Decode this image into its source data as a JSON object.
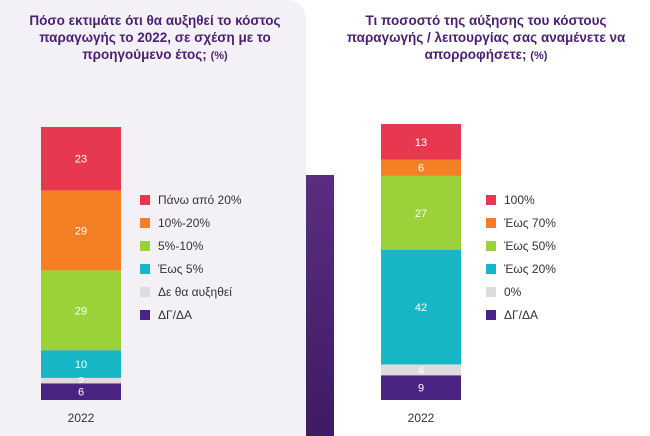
{
  "colors": [
    "#e8384f",
    "#f47f24",
    "#9bd23a",
    "#17b6c5",
    "#dcdcdc",
    "#4a2483"
  ],
  "charts": [
    {
      "title": "Πόσο εκτιμάτε ότι θα αυξηθεί το κόστος παραγωγής το 2022, σε σχέση με το προηγούμενο έτος;",
      "unit": "(%)",
      "year": "2022",
      "legend": [
        "Πάνω από 20%",
        "10%-20%",
        "5%-10%",
        "Έως 5%",
        "Δε θα αυξηθεί",
        "ΔΓ/ΔΑ"
      ]
    },
    {
      "title": "Τι ποσοστό της αύξησης του κόστους παραγωγής / λειτουργίας σας αναμένετε να απορροφήσετε;",
      "unit": "(%)",
      "year": "2022",
      "legend": [
        "100%",
        "Έως 70%",
        "Έως 50%",
        "Έως 20%",
        "0%",
        "ΔΓ/ΔΑ"
      ]
    }
  ],
  "chart_data": [
    {
      "type": "bar",
      "stacked": true,
      "categories": [
        "2022"
      ],
      "series": [
        {
          "name": "Πάνω από 20%",
          "values": [
            23
          ]
        },
        {
          "name": "10%-20%",
          "values": [
            29
          ]
        },
        {
          "name": "5%-10%",
          "values": [
            29
          ]
        },
        {
          "name": "Έως 5%",
          "values": [
            10
          ]
        },
        {
          "name": "Δε θα αυξηθεί",
          "values": [
            2
          ]
        },
        {
          "name": "ΔΓ/ΔΑ",
          "values": [
            6
          ]
        }
      ],
      "legend_position": "right"
    },
    {
      "type": "bar",
      "stacked": true,
      "categories": [
        "2022"
      ],
      "series": [
        {
          "name": "100%",
          "values": [
            13
          ]
        },
        {
          "name": "Έως 70%",
          "values": [
            6
          ]
        },
        {
          "name": "Έως 50%",
          "values": [
            27
          ]
        },
        {
          "name": "Έως 20%",
          "values": [
            42
          ]
        },
        {
          "name": "0%",
          "values": [
            4
          ]
        },
        {
          "name": "ΔΓ/ΔΑ",
          "values": [
            9
          ]
        }
      ],
      "legend_position": "right"
    }
  ]
}
